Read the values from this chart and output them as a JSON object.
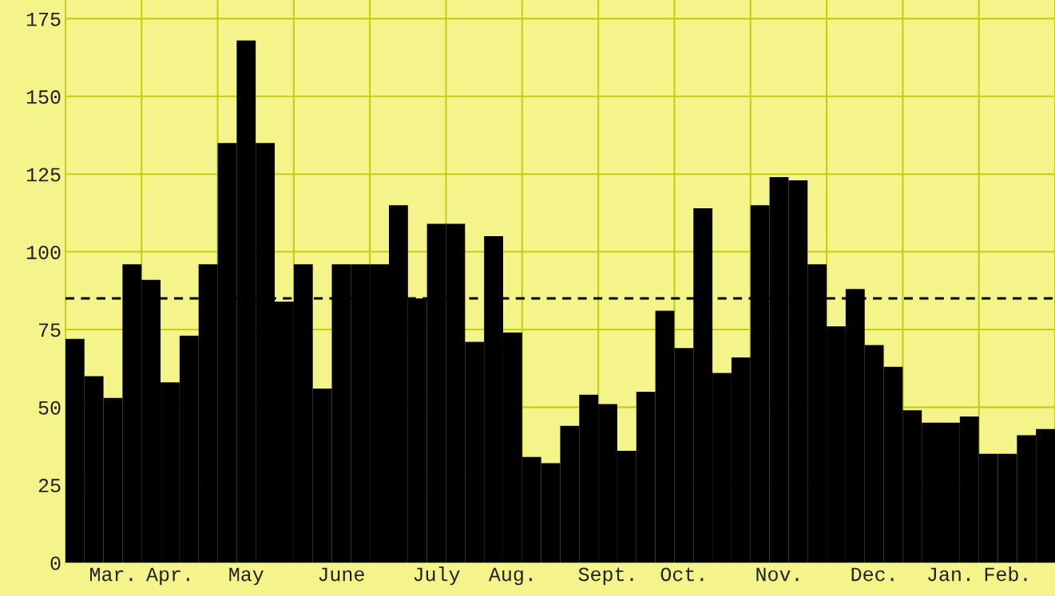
{
  "chart_data": {
    "type": "bar",
    "categories": [
      null,
      null,
      "Mar.",
      null,
      null,
      "Apr.",
      null,
      null,
      null,
      "May",
      null,
      null,
      null,
      null,
      "June",
      null,
      null,
      null,
      null,
      "July",
      null,
      null,
      null,
      "Aug.",
      null,
      null,
      null,
      null,
      "Sept.",
      null,
      null,
      null,
      "Oct.",
      null,
      null,
      null,
      null,
      "Nov.",
      null,
      null,
      null,
      null,
      "Dec.",
      null,
      null,
      null,
      "Jan.",
      null,
      null,
      "Feb.",
      null,
      null
    ],
    "values": [
      72,
      60,
      53,
      96,
      91,
      58,
      73,
      96,
      135,
      168,
      135,
      84,
      96,
      56,
      96,
      96,
      96,
      115,
      85,
      109,
      109,
      71,
      105,
      74,
      34,
      32,
      44,
      54,
      51,
      36,
      55,
      81,
      69,
      114,
      61,
      66,
      115,
      124,
      123,
      96,
      76,
      88,
      70,
      63,
      49,
      45,
      45,
      47,
      35,
      35,
      41,
      43
    ],
    "color": "#000000",
    "ylim": [
      0,
      181
    ],
    "yticks": [
      0,
      25,
      50,
      75,
      100,
      125,
      150,
      175
    ],
    "grid": true,
    "ref_lines": [
      {
        "axis": "y",
        "value": 85,
        "color": "#000000",
        "line_style": "dashed"
      }
    ]
  }
}
